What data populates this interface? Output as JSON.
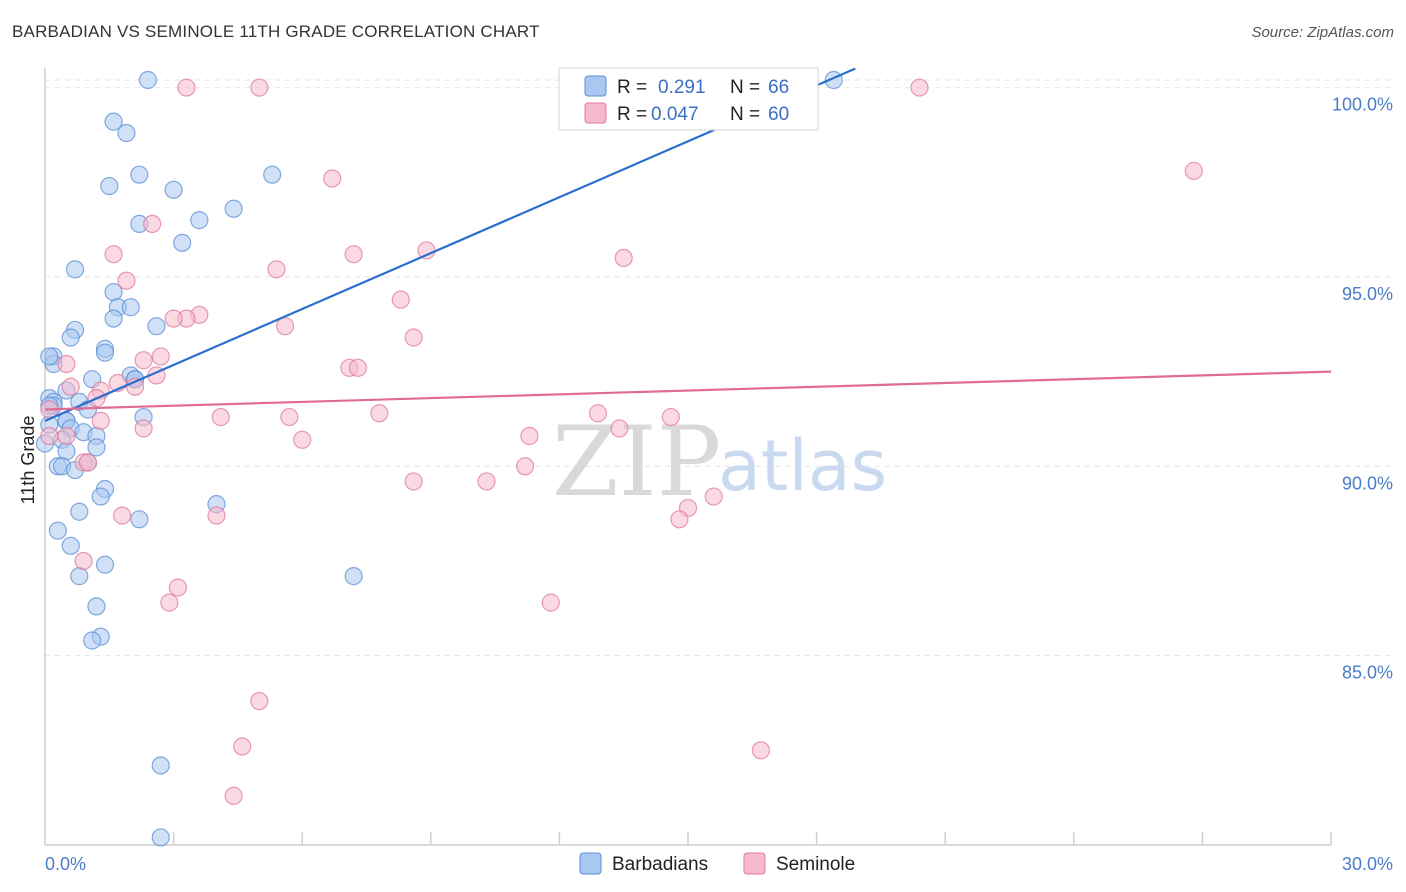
{
  "header": {
    "title": "BARBADIAN VS SEMINOLE 11TH GRADE CORRELATION CHART",
    "source": "Source: ZipAtlas.com"
  },
  "watermark": {
    "zip": "ZIP",
    "atlas": "atlas"
  },
  "legend": {
    "r_label": "R =",
    "n_label": "N =",
    "rows": [
      {
        "name": "Barbadians",
        "r": "0.291",
        "n": "66",
        "fill": "#a9c8f0",
        "stroke": "#5b8fd6"
      },
      {
        "name": "Seminole",
        "r": "0.047",
        "n": "60",
        "fill": "#f6b9cc",
        "stroke": "#e07a9c"
      }
    ]
  },
  "chart_data": {
    "type": "scatter",
    "title": "BARBADIAN VS SEMINOLE 11TH GRADE CORRELATION CHART",
    "xlabel": "",
    "ylabel": "11th Grade",
    "xlim": [
      0,
      30
    ],
    "ylim": [
      80,
      100.5
    ],
    "x_tick_labels": [
      "0.0%",
      "30.0%"
    ],
    "y_ticks": [
      85,
      90,
      95,
      100
    ],
    "y_tick_labels": [
      "85.0%",
      "90.0%",
      "95.0%",
      "100.0%"
    ],
    "grid": true,
    "legend_position": "bottom",
    "series": [
      {
        "name": "Barbadians",
        "color": "#5b8fd6",
        "fill": "#a9c8f0",
        "line_color": "#2b6ecf",
        "trend": {
          "x": [
            0,
            18.9
          ],
          "y": [
            91.2,
            100.5
          ]
        },
        "points": [
          [
            2.4,
            100.2
          ],
          [
            18.4,
            100.2
          ],
          [
            1.6,
            99.1
          ],
          [
            1.9,
            98.8
          ],
          [
            2.2,
            97.7
          ],
          [
            5.3,
            97.7
          ],
          [
            1.5,
            97.4
          ],
          [
            3.0,
            97.3
          ],
          [
            4.4,
            96.8
          ],
          [
            2.2,
            96.4
          ],
          [
            3.6,
            96.5
          ],
          [
            3.2,
            95.9
          ],
          [
            0.7,
            95.2
          ],
          [
            1.6,
            94.6
          ],
          [
            1.7,
            94.2
          ],
          [
            2.0,
            94.2
          ],
          [
            1.6,
            93.9
          ],
          [
            2.6,
            93.7
          ],
          [
            0.7,
            93.6
          ],
          [
            0.6,
            93.4
          ],
          [
            1.4,
            93.1
          ],
          [
            1.4,
            93.0
          ],
          [
            0.2,
            92.9
          ],
          [
            0.2,
            92.7
          ],
          [
            2.0,
            92.4
          ],
          [
            2.1,
            92.3
          ],
          [
            2.1,
            92.3
          ],
          [
            1.1,
            92.3
          ],
          [
            0.5,
            92.0
          ],
          [
            0.1,
            91.8
          ],
          [
            0.2,
            91.7
          ],
          [
            0.2,
            91.6
          ],
          [
            0.1,
            91.6
          ],
          [
            0.8,
            91.7
          ],
          [
            1.0,
            91.5
          ],
          [
            0.5,
            91.2
          ],
          [
            0.5,
            91.2
          ],
          [
            2.3,
            91.3
          ],
          [
            0.6,
            91.0
          ],
          [
            0.9,
            90.9
          ],
          [
            1.2,
            90.8
          ],
          [
            0.4,
            90.7
          ],
          [
            0.0,
            90.6
          ],
          [
            1.2,
            90.5
          ],
          [
            0.5,
            90.4
          ],
          [
            1.0,
            90.1
          ],
          [
            0.3,
            90.0
          ],
          [
            0.4,
            90.0
          ],
          [
            0.7,
            89.9
          ],
          [
            1.4,
            89.4
          ],
          [
            1.3,
            89.2
          ],
          [
            4.0,
            89.0
          ],
          [
            0.8,
            88.8
          ],
          [
            2.2,
            88.6
          ],
          [
            0.3,
            88.3
          ],
          [
            0.6,
            87.9
          ],
          [
            1.4,
            87.4
          ],
          [
            7.2,
            87.1
          ],
          [
            0.8,
            87.1
          ],
          [
            1.2,
            86.3
          ],
          [
            1.3,
            85.5
          ],
          [
            1.1,
            85.4
          ],
          [
            2.7,
            82.1
          ],
          [
            2.7,
            80.2
          ],
          [
            0.1,
            91.1
          ],
          [
            0.1,
            92.9
          ]
        ]
      },
      {
        "name": "Seminole",
        "color": "#e07a9c",
        "fill": "#f6b9cc",
        "line_color": "#e06b94",
        "trend": {
          "x": [
            0,
            30
          ],
          "y": [
            91.5,
            92.5
          ]
        },
        "points": [
          [
            3.3,
            100.0
          ],
          [
            5.0,
            100.0
          ],
          [
            20.4,
            100.0
          ],
          [
            26.8,
            97.8
          ],
          [
            6.7,
            97.6
          ],
          [
            2.5,
            96.4
          ],
          [
            1.6,
            95.6
          ],
          [
            7.2,
            95.6
          ],
          [
            8.9,
            95.7
          ],
          [
            13.5,
            95.5
          ],
          [
            5.4,
            95.2
          ],
          [
            1.9,
            94.9
          ],
          [
            8.3,
            94.4
          ],
          [
            3.6,
            94.0
          ],
          [
            3.3,
            93.9
          ],
          [
            3.0,
            93.9
          ],
          [
            5.6,
            93.7
          ],
          [
            8.6,
            93.4
          ],
          [
            0.5,
            92.7
          ],
          [
            2.3,
            92.8
          ],
          [
            2.7,
            92.9
          ],
          [
            0.6,
            92.1
          ],
          [
            1.7,
            92.2
          ],
          [
            2.1,
            92.1
          ],
          [
            1.3,
            92.0
          ],
          [
            7.1,
            92.6
          ],
          [
            7.3,
            92.6
          ],
          [
            2.6,
            92.4
          ],
          [
            1.2,
            91.8
          ],
          [
            1.3,
            91.2
          ],
          [
            4.1,
            91.3
          ],
          [
            5.7,
            91.3
          ],
          [
            7.8,
            91.4
          ],
          [
            12.9,
            91.4
          ],
          [
            14.6,
            91.3
          ],
          [
            13.4,
            91.0
          ],
          [
            2.3,
            91.0
          ],
          [
            11.3,
            90.8
          ],
          [
            6.0,
            90.7
          ],
          [
            0.5,
            90.8
          ],
          [
            0.1,
            90.8
          ],
          [
            0.1,
            91.5
          ],
          [
            0.9,
            90.1
          ],
          [
            1.0,
            90.1
          ],
          [
            11.2,
            90.0
          ],
          [
            8.6,
            89.6
          ],
          [
            10.3,
            89.6
          ],
          [
            15.6,
            89.2
          ],
          [
            15.0,
            88.9
          ],
          [
            14.8,
            88.6
          ],
          [
            4.0,
            88.7
          ],
          [
            1.8,
            88.7
          ],
          [
            0.9,
            87.5
          ],
          [
            3.1,
            86.8
          ],
          [
            2.9,
            86.4
          ],
          [
            11.8,
            86.4
          ],
          [
            5.0,
            83.8
          ],
          [
            4.6,
            82.6
          ],
          [
            16.7,
            82.5
          ],
          [
            4.4,
            81.3
          ]
        ]
      }
    ]
  }
}
